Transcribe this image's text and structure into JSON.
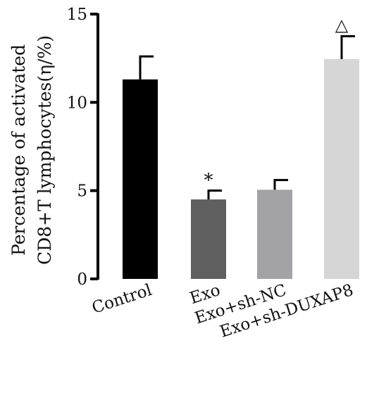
{
  "chart_data": {
    "type": "bar",
    "title": "",
    "xlabel": "",
    "ylabel_lines": [
      "Percentage of activated",
      "CD8+T lymphocytes(η/%)"
    ],
    "categories": [
      "Control",
      "Exo",
      "Exo+sh-NC",
      "Exo+sh-DUXAP8"
    ],
    "values": [
      11.3,
      4.5,
      5.05,
      12.45
    ],
    "errors": [
      1.3,
      0.5,
      0.55,
      1.3
    ],
    "annotations": [
      "",
      "*",
      "",
      "△"
    ],
    "colors": [
      "#000000",
      "#5f5f5f",
      "#a3a3a5",
      "#d6d6d6"
    ],
    "ylim": [
      0,
      15
    ],
    "yticks": [
      0,
      5,
      10,
      15
    ],
    "grid": false,
    "legend": "none"
  }
}
